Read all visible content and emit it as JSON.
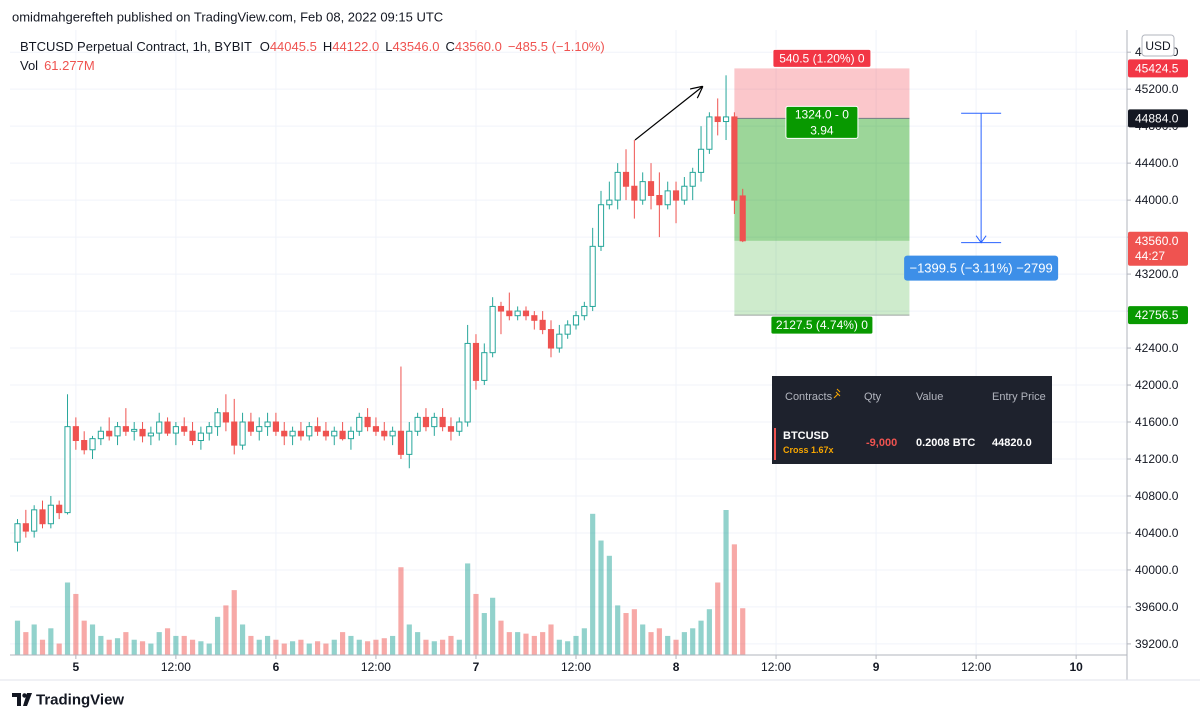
{
  "header": {
    "byline": "omidmahgerefteh published on TradingView.com, Feb 08, 2022 09:15 UTC"
  },
  "footer": {
    "brand": "TradingView"
  },
  "chart_data": {
    "type": "candlestick",
    "currency_button": "USD",
    "legend": {
      "symbol": "BTCUSD Perpetual Contract, 1h, BYBIT",
      "ohlc_names": [
        "O",
        "H",
        "L",
        "C"
      ],
      "ohlc_values": [
        "44045.5",
        "44122.0",
        "43546.0",
        "43560.0"
      ],
      "change": "−485.5 (−1.10%)",
      "volume_name": "Vol",
      "volume_value": "61.277M"
    },
    "up_color": "#26a69a",
    "down_color": "#ef5350",
    "x": [
      -7,
      -6,
      -5,
      -4,
      -3,
      -2,
      -1,
      0,
      1,
      2,
      3,
      4,
      5,
      6,
      7,
      8,
      9,
      10,
      11,
      12,
      13,
      14,
      15,
      16,
      17,
      18,
      19,
      20,
      21,
      22,
      23,
      24,
      25,
      26,
      27,
      28,
      29,
      30,
      31,
      32,
      33,
      34,
      35,
      36,
      37,
      38,
      39,
      40,
      41,
      42,
      43,
      44,
      45,
      46,
      47,
      48,
      49,
      50,
      51,
      52,
      53,
      54,
      55,
      56,
      57,
      58,
      59,
      60,
      61,
      62,
      63,
      64,
      65,
      66,
      67,
      68,
      69,
      70,
      71,
      72,
      73,
      74,
      75,
      76,
      77,
      78,
      79,
      80
    ],
    "open": [
      40300,
      40500,
      40420,
      40650,
      40500,
      40700,
      40620,
      41550,
      41400,
      41300,
      41420,
      41500,
      41450,
      41550,
      41500,
      41520,
      41450,
      41480,
      41600,
      41480,
      41550,
      41500,
      41400,
      41480,
      41550,
      41700,
      41600,
      41350,
      41600,
      41500,
      41550,
      41600,
      41500,
      41450,
      41500,
      41450,
      41550,
      41500,
      41450,
      41500,
      41420,
      41500,
      41650,
      41550,
      41500,
      41450,
      41500,
      41250,
      41500,
      41650,
      41550,
      41650,
      41550,
      41500,
      41600,
      42450,
      42050,
      42350,
      42850,
      42800,
      42750,
      42800,
      42750,
      42700,
      42600,
      42400,
      42550,
      42650,
      42750,
      42850,
      43500,
      43950,
      44000,
      44300,
      44150,
      44000,
      44200,
      44050,
      43950,
      44100,
      44000,
      44150,
      44300,
      44550,
      44900,
      44850,
      44900,
      44045.5
    ],
    "high": [
      40550,
      40650,
      40700,
      40750,
      40800,
      40750,
      41900,
      41650,
      41500,
      41450,
      41550,
      41650,
      41600,
      41750,
      41600,
      41600,
      41550,
      41700,
      41650,
      41600,
      41650,
      41600,
      41550,
      41600,
      41750,
      41900,
      41850,
      41700,
      41700,
      41650,
      41700,
      41700,
      41600,
      41550,
      41600,
      41600,
      41650,
      41600,
      41550,
      41600,
      41550,
      41700,
      41750,
      41650,
      41600,
      41550,
      42200,
      41600,
      41700,
      41750,
      41700,
      41750,
      41650,
      41650,
      42650,
      42550,
      42450,
      42950,
      42900,
      43000,
      42850,
      42850,
      42800,
      42800,
      42700,
      42650,
      42700,
      42800,
      42900,
      43700,
      44100,
      44200,
      44400,
      44550,
      44650,
      44300,
      44400,
      44300,
      44200,
      44200,
      44250,
      44350,
      44800,
      44950,
      45100,
      45350,
      44950,
      44122
    ],
    "low": [
      40200,
      40350,
      40350,
      40450,
      40450,
      40550,
      40600,
      41300,
      41250,
      41200,
      41350,
      41400,
      41350,
      41450,
      41400,
      41380,
      41350,
      41400,
      41450,
      41350,
      41450,
      41350,
      41300,
      41400,
      41450,
      41500,
      41250,
      41300,
      41450,
      41400,
      41450,
      41450,
      41350,
      41350,
      41400,
      41400,
      41450,
      41400,
      41350,
      41400,
      41300,
      41450,
      41500,
      41450,
      41400,
      41350,
      41200,
      41100,
      41450,
      41500,
      41450,
      41500,
      41400,
      41450,
      41550,
      41950,
      42000,
      42300,
      42550,
      42700,
      42700,
      42700,
      42600,
      42550,
      42300,
      42350,
      42500,
      42600,
      42700,
      42800,
      43450,
      43900,
      43900,
      44000,
      43800,
      43950,
      43900,
      43600,
      43900,
      43750,
      43950,
      44000,
      44200,
      44500,
      44700,
      44650,
      43850,
      43546
    ],
    "close": [
      40500,
      40420,
      40650,
      40500,
      40700,
      40620,
      41550,
      41400,
      41300,
      41420,
      41500,
      41450,
      41550,
      41500,
      41520,
      41450,
      41480,
      41600,
      41480,
      41550,
      41500,
      41400,
      41480,
      41550,
      41700,
      41600,
      41350,
      41600,
      41500,
      41550,
      41600,
      41500,
      41450,
      41500,
      41450,
      41550,
      41500,
      41450,
      41500,
      41420,
      41500,
      41650,
      41550,
      41500,
      41450,
      41500,
      41250,
      41500,
      41650,
      41550,
      41650,
      41550,
      41500,
      41600,
      42450,
      42050,
      42350,
      42850,
      42800,
      42750,
      42800,
      42750,
      42700,
      42600,
      42400,
      42550,
      42650,
      42750,
      42850,
      43500,
      43950,
      44000,
      44300,
      44150,
      44000,
      44200,
      44050,
      43950,
      44100,
      44000,
      44150,
      44300,
      44550,
      44900,
      44850,
      44900,
      44000,
      43560
    ],
    "volume": [
      45,
      30,
      40,
      20,
      35,
      15,
      95,
      80,
      45,
      40,
      25,
      20,
      22,
      30,
      20,
      18,
      15,
      30,
      35,
      25,
      25,
      20,
      18,
      15,
      50,
      65,
      85,
      40,
      25,
      20,
      25,
      20,
      15,
      18,
      20,
      15,
      18,
      15,
      20,
      30,
      25,
      20,
      18,
      20,
      22,
      25,
      115,
      40,
      30,
      20,
      18,
      20,
      25,
      20,
      120,
      80,
      55,
      75,
      45,
      30,
      30,
      28,
      25,
      30,
      40,
      20,
      18,
      25,
      35,
      185,
      150,
      130,
      65,
      55,
      60,
      40,
      30,
      35,
      25,
      20,
      30,
      35,
      45,
      60,
      95,
      190,
      145,
      61.277
    ],
    "xlim": [
      -7.9,
      126.1
    ],
    "xticks": [
      {
        "value": 0,
        "label": "5"
      },
      {
        "value": 12,
        "label": "12:00"
      },
      {
        "value": 24,
        "label": "6"
      },
      {
        "value": 36,
        "label": "12:00"
      },
      {
        "value": 48,
        "label": "7"
      },
      {
        "value": 60,
        "label": "12:00"
      },
      {
        "value": 72,
        "label": "8"
      },
      {
        "value": 84,
        "label": "12:00"
      },
      {
        "value": 96,
        "label": "9"
      },
      {
        "value": 108,
        "label": "12:00"
      },
      {
        "value": 120,
        "label": "10"
      }
    ],
    "ylim": [
      39080,
      45840
    ],
    "yticks": [
      {
        "value": 39200,
        "label": "39200.0"
      },
      {
        "value": 39600,
        "label": "39600.0"
      },
      {
        "value": 40000,
        "label": "40000.0"
      },
      {
        "value": 40400,
        "label": "40400.0"
      },
      {
        "value": 40800,
        "label": "40800.0"
      },
      {
        "value": 41200,
        "label": "41200.0"
      },
      {
        "value": 41600,
        "label": "41600.0"
      },
      {
        "value": 42000,
        "label": "42000.0"
      },
      {
        "value": 42400,
        "label": "42400.0"
      },
      {
        "value": 42800,
        "label": "42800.0"
      },
      {
        "value": 43200,
        "label": "43200.0"
      },
      {
        "value": 43600,
        "label": "43600.0"
      },
      {
        "value": 44000,
        "label": "44000.0"
      },
      {
        "value": 44400,
        "label": "44400.0"
      },
      {
        "value": 44800,
        "label": "44800.0"
      },
      {
        "value": 45200,
        "label": "45200.0"
      },
      {
        "value": 45600,
        "label": "45600.0"
      }
    ],
    "grid": true,
    "last_price": {
      "label": "43560.0",
      "countdown": "44:27"
    },
    "position": {
      "x_range": [
        79,
        100
      ],
      "stop": 45424.5,
      "entry": {
        "value": 44884.0,
        "label": "44884.0"
      },
      "target": 42756.5,
      "stop_text": "540.5 (1.20%) 0",
      "entry_text": [
        "1324.0 - 0",
        "3.94"
      ],
      "target_text": "2127.5 (4.74%) 0"
    },
    "measure": {
      "x": 108.6,
      "from": 44939.5,
      "to": 43540.0,
      "text": "−1399.5 (−3.11%) −2799"
    }
  },
  "positions_panel": {
    "headers": [
      "Contracts",
      "Qty",
      "Value",
      "Entry Price"
    ],
    "row": {
      "symbol": "BTCUSD",
      "margin": "Cross 1.67x",
      "qty": "-9,000",
      "value": "0.2008 BTC",
      "entry": "44820.0"
    }
  }
}
